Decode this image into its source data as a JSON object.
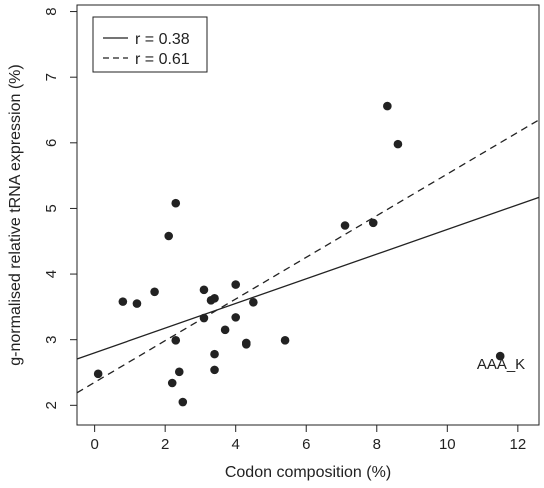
{
  "chart_data": {
    "type": "scatter",
    "title": "",
    "xlabel": "Codon composition (%)",
    "ylabel": "g-normalised relative tRNA expression (%)",
    "xlim": [
      -0.5,
      12.6
    ],
    "ylim": [
      1.7,
      8.1
    ],
    "xticks": [
      0,
      2,
      4,
      6,
      8,
      10,
      12
    ],
    "yticks": [
      2,
      3,
      4,
      5,
      6,
      7,
      8
    ],
    "grid": false,
    "legend_position": "top-left",
    "points": [
      {
        "x": 0.1,
        "y": 2.48
      },
      {
        "x": 0.8,
        "y": 3.58
      },
      {
        "x": 1.2,
        "y": 3.55
      },
      {
        "x": 1.7,
        "y": 3.73
      },
      {
        "x": 2.1,
        "y": 4.58
      },
      {
        "x": 2.2,
        "y": 2.34
      },
      {
        "x": 2.3,
        "y": 5.08
      },
      {
        "x": 2.3,
        "y": 2.99
      },
      {
        "x": 2.4,
        "y": 2.51
      },
      {
        "x": 2.5,
        "y": 2.05
      },
      {
        "x": 3.1,
        "y": 3.76
      },
      {
        "x": 3.1,
        "y": 3.33
      },
      {
        "x": 3.3,
        "y": 3.6
      },
      {
        "x": 3.4,
        "y": 3.63
      },
      {
        "x": 3.4,
        "y": 2.54
      },
      {
        "x": 3.4,
        "y": 2.78
      },
      {
        "x": 3.7,
        "y": 3.15
      },
      {
        "x": 4.0,
        "y": 3.84
      },
      {
        "x": 4.0,
        "y": 3.34
      },
      {
        "x": 4.3,
        "y": 2.95
      },
      {
        "x": 4.3,
        "y": 2.93
      },
      {
        "x": 4.5,
        "y": 3.57
      },
      {
        "x": 5.4,
        "y": 2.99
      },
      {
        "x": 7.1,
        "y": 4.74
      },
      {
        "x": 7.9,
        "y": 4.78
      },
      {
        "x": 8.3,
        "y": 6.56
      },
      {
        "x": 8.6,
        "y": 5.98
      },
      {
        "x": 11.5,
        "y": 2.75
      }
    ],
    "series": [
      {
        "name": "r = 0.38",
        "line_style": "solid",
        "intercept": 2.8,
        "slope": 0.188
      },
      {
        "name": "r = 0.61",
        "line_style": "dashed",
        "intercept": 2.35,
        "slope": 0.3175
      }
    ],
    "annotations": [
      {
        "text": "AAA_K",
        "x": 11.5,
        "y": 2.35
      }
    ],
    "colors": {
      "points": "#222222",
      "lines": "#222222",
      "background": "#ffffff"
    }
  }
}
